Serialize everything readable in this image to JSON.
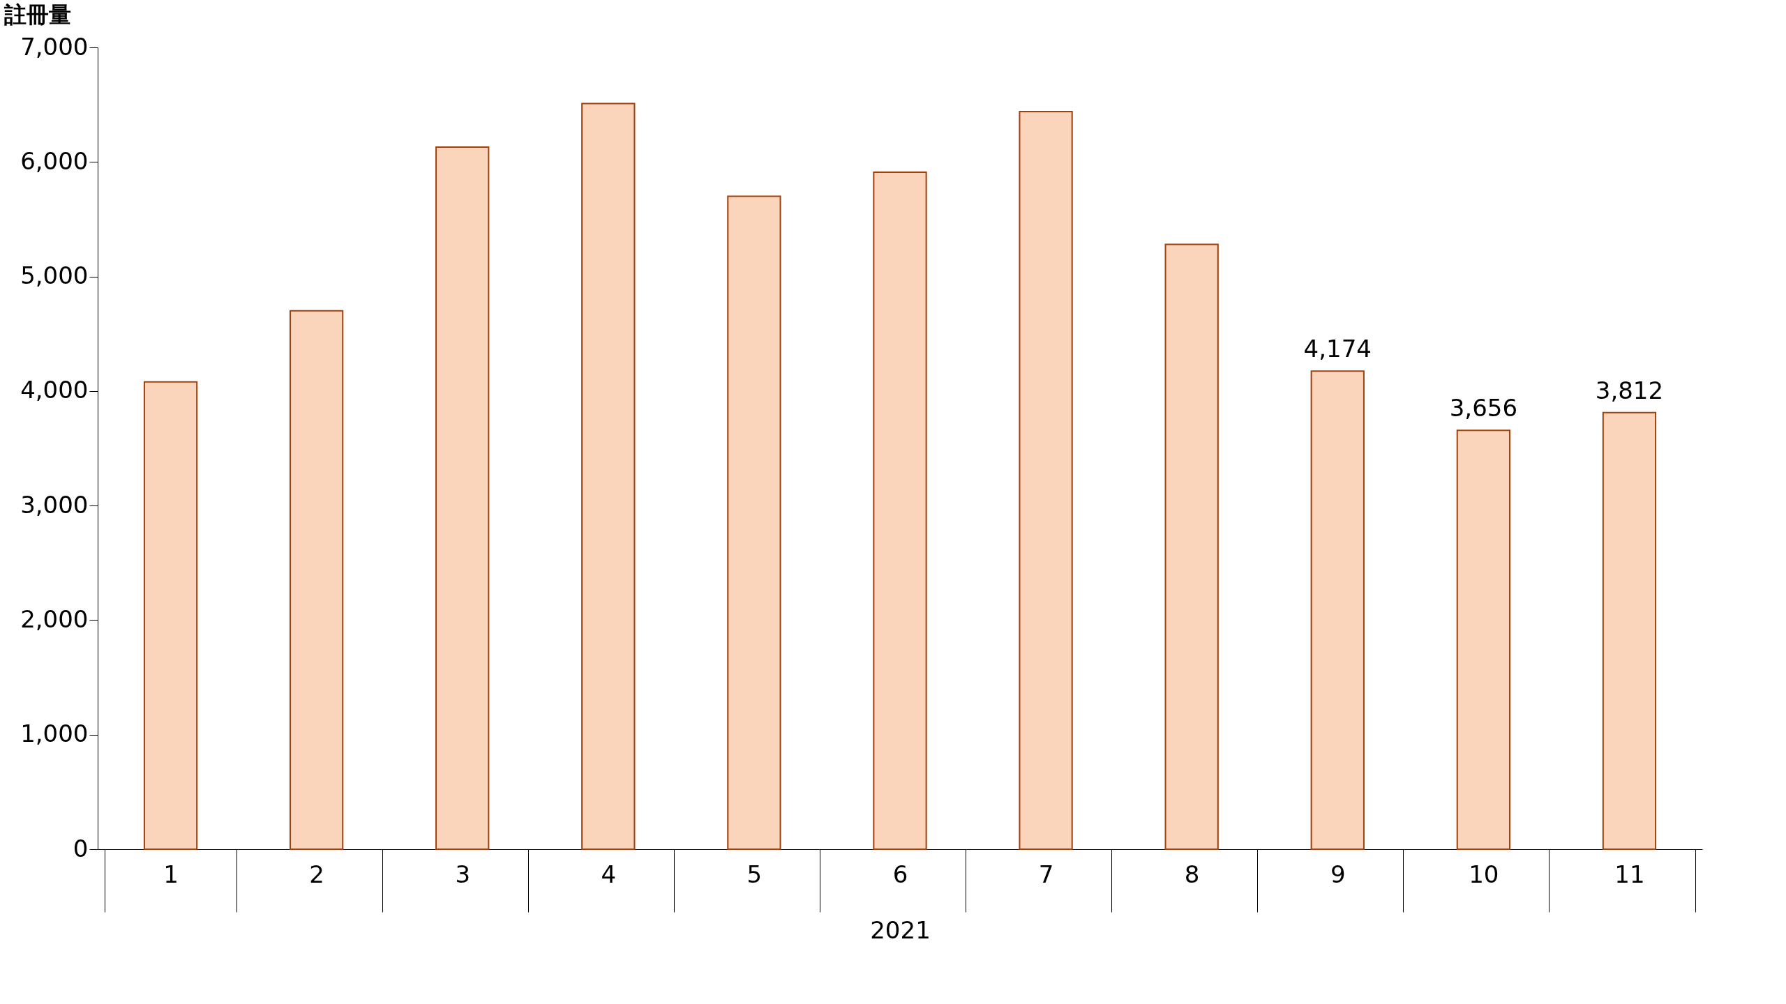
{
  "chart_data": {
    "type": "bar",
    "ylabel": "註冊量",
    "xlabel": "2021",
    "categories": [
      "1",
      "2",
      "3",
      "4",
      "5",
      "6",
      "7",
      "8",
      "9",
      "10",
      "11"
    ],
    "values": [
      4080,
      4700,
      6130,
      6510,
      5700,
      5910,
      6440,
      5280,
      4174,
      3656,
      3812
    ],
    "value_labels": [
      null,
      null,
      null,
      null,
      null,
      null,
      null,
      null,
      "4,174",
      "3,656",
      "3,812"
    ],
    "color": "#fbd5bb",
    "ylim": [
      0,
      7000
    ],
    "yticks": [
      {
        "value": 0,
        "label": "0"
      },
      {
        "value": 1000,
        "label": "1,000"
      },
      {
        "value": 2000,
        "label": "2,000"
      },
      {
        "value": 3000,
        "label": "3,000"
      },
      {
        "value": 4000,
        "label": "4,000"
      },
      {
        "value": 5000,
        "label": "5,000"
      },
      {
        "value": 6000,
        "label": "6,000"
      },
      {
        "value": 7000,
        "label": "7,000"
      }
    ],
    "grid": false
  }
}
